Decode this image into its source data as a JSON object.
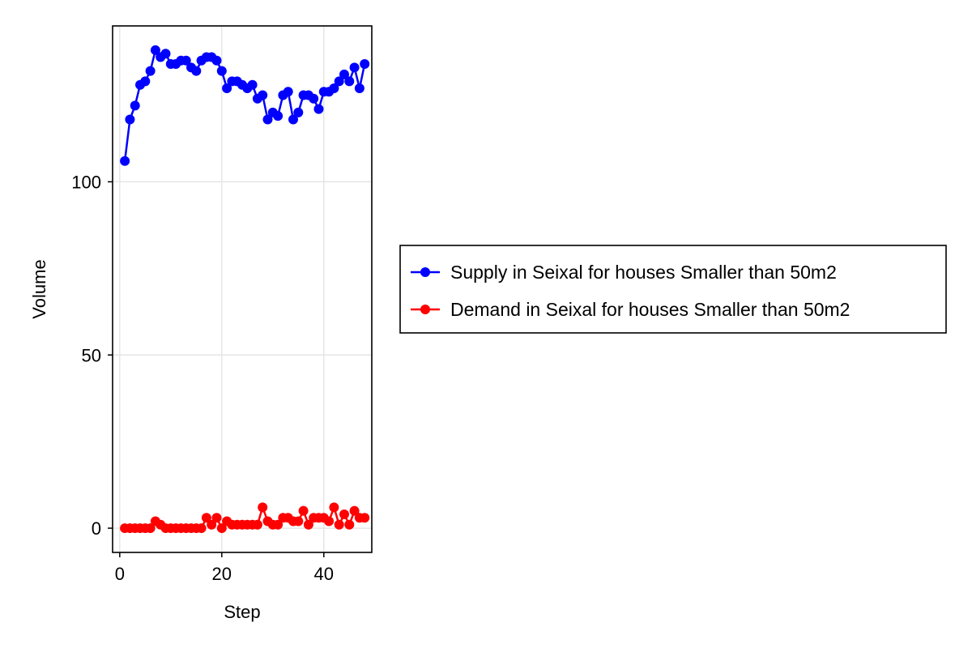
{
  "chart_data": {
    "type": "line",
    "title": "",
    "xlabel": "Step",
    "ylabel": "Volume",
    "xlim": [
      -1.4,
      49.4
    ],
    "ylim": [
      -7,
      145
    ],
    "xticks": [
      0,
      20,
      40
    ],
    "yticks": [
      0,
      50,
      100
    ],
    "grid": true,
    "legend_position": "right",
    "series": [
      {
        "name": "Supply in Seixal for houses Smaller than 50m2",
        "color": "#0000ff",
        "x": [
          1,
          2,
          3,
          4,
          5,
          6,
          7,
          8,
          9,
          10,
          11,
          12,
          13,
          14,
          15,
          16,
          17,
          18,
          19,
          20,
          21,
          22,
          23,
          24,
          25,
          26,
          27,
          28,
          29,
          30,
          31,
          32,
          33,
          34,
          35,
          36,
          37,
          38,
          39,
          40,
          41,
          42,
          43,
          44,
          45,
          46,
          47,
          48
        ],
        "values": [
          106,
          118,
          122,
          128,
          129,
          132,
          138,
          136,
          137,
          134,
          134,
          135,
          135,
          133,
          132,
          135,
          136,
          136,
          135,
          132,
          127,
          129,
          129,
          128,
          127,
          128,
          124,
          125,
          118,
          120,
          119,
          125,
          126,
          118,
          120,
          125,
          125,
          124,
          121,
          126,
          126,
          127,
          129,
          131,
          129,
          133,
          127,
          134
        ]
      },
      {
        "name": "Demand in Seixal for houses Smaller than 50m2",
        "color": "#ff0000",
        "x": [
          1,
          2,
          3,
          4,
          5,
          6,
          7,
          8,
          9,
          10,
          11,
          12,
          13,
          14,
          15,
          16,
          17,
          18,
          19,
          20,
          21,
          22,
          23,
          24,
          25,
          26,
          27,
          28,
          29,
          30,
          31,
          32,
          33,
          34,
          35,
          36,
          37,
          38,
          39,
          40,
          41,
          42,
          43,
          44,
          45,
          46,
          47,
          48
        ],
        "values": [
          0,
          0,
          0,
          0,
          0,
          0,
          2,
          1,
          0,
          0,
          0,
          0,
          0,
          0,
          0,
          0,
          3,
          1,
          3,
          0,
          2,
          1,
          1,
          1,
          1,
          1,
          1,
          6,
          2,
          1,
          1,
          3,
          3,
          2,
          2,
          5,
          1,
          3,
          3,
          3,
          2,
          6,
          1,
          4,
          1,
          5,
          3,
          3
        ]
      }
    ]
  }
}
